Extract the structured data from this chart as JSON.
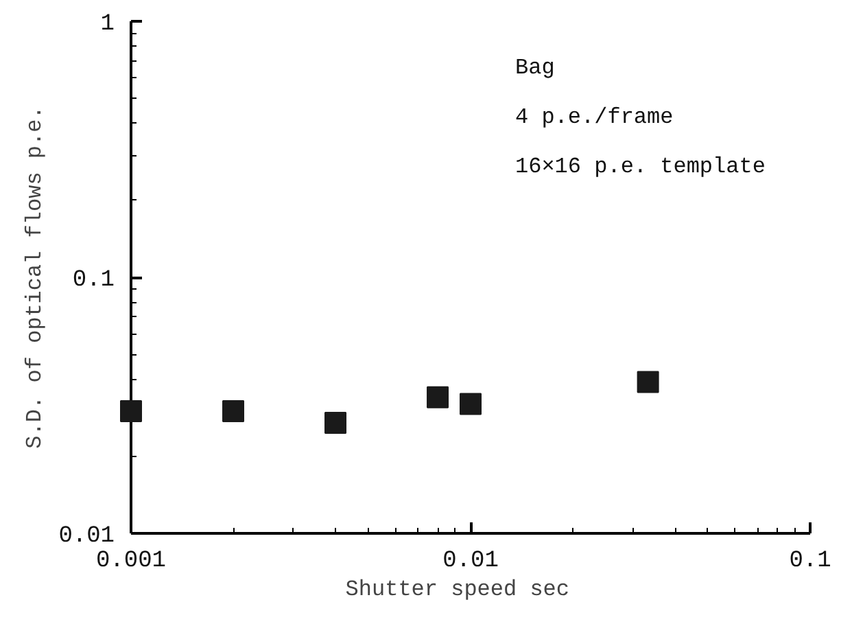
{
  "chart_data": {
    "type": "scatter",
    "xlabel": "Shutter speed   sec",
    "ylabel": "S.D. of optical flows p.e.",
    "annotations": [
      "Bag",
      "4 p.e./frame",
      "16×16 p.e. template"
    ],
    "x": [
      0.001,
      0.002,
      0.004,
      0.008,
      0.01,
      0.0333
    ],
    "series": [
      {
        "color": "#1a1a1a",
        "values": [
          0.03,
          0.03,
          0.027,
          0.034,
          0.032,
          0.039
        ]
      }
    ],
    "xlim": [
      0.001,
      0.1
    ],
    "ylim": [
      0.01,
      1
    ],
    "xticks": [
      0.001,
      0.01,
      0.1
    ],
    "yticks": [
      0.01,
      0.1,
      1
    ],
    "log": "xy",
    "grid": false,
    "marker": "square"
  }
}
